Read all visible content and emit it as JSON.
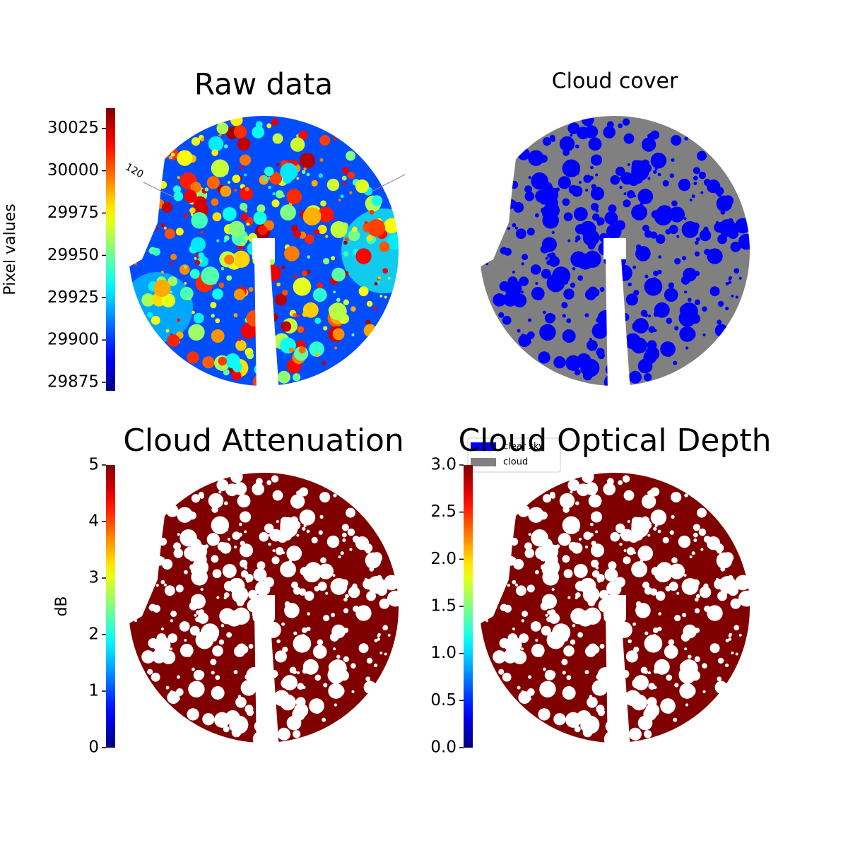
{
  "chart_data": [
    {
      "type": "image",
      "title": "Raw data",
      "colormap": "jet",
      "colorbar": {
        "label": "Pixel values",
        "lim": [
          29870,
          30037
        ],
        "ticks": [
          29875,
          29900,
          29925,
          29950,
          29975,
          30000,
          30025
        ]
      },
      "annotations": [
        "120"
      ]
    },
    {
      "type": "image",
      "title": "Cloud cover",
      "legend": {
        "series": [
          {
            "name": "clear sky",
            "color": "#0000ff"
          },
          {
            "name": "cloud",
            "color": "#808080"
          }
        ]
      }
    },
    {
      "type": "image",
      "title": "Cloud Attenuation",
      "colormap": "jet",
      "colorbar": {
        "label": "dB",
        "lim": [
          0,
          5
        ],
        "ticks": [
          0,
          1,
          2,
          3,
          4,
          5
        ]
      }
    },
    {
      "type": "image",
      "title": "Cloud Optical Depth",
      "colormap": "jet",
      "colorbar": {
        "lim": [
          0,
          3
        ],
        "ticks": [
          {
            "value": 0,
            "label": "0.0"
          },
          0.5,
          {
            "value": 1,
            "label": "1.0"
          },
          1.5,
          {
            "value": 2,
            "label": "2.0"
          },
          2.5,
          {
            "value": 3,
            "label": "3.0"
          }
        ]
      }
    }
  ]
}
